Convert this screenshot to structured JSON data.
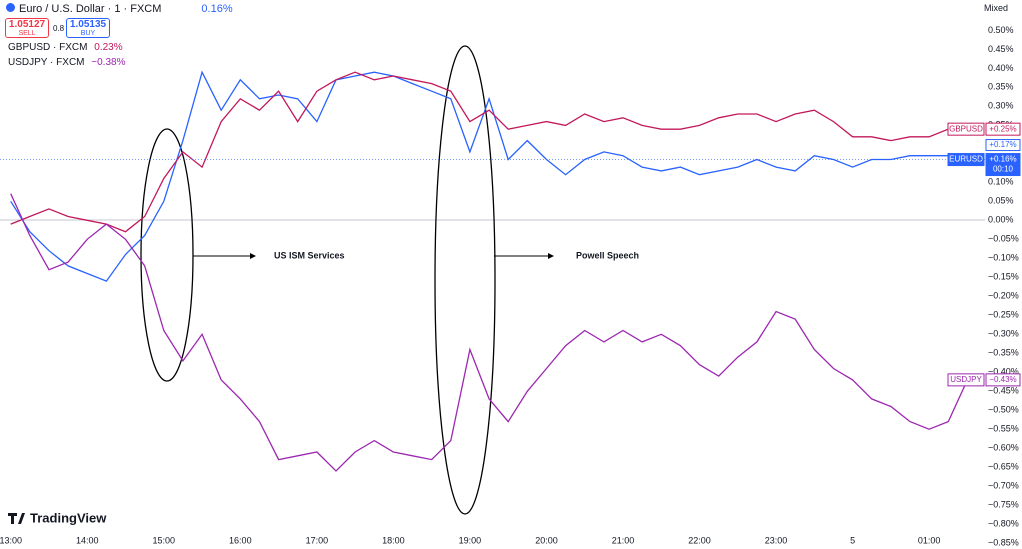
{
  "header": {
    "title": "Euro / U.S. Dollar · 1 · FXCM",
    "change": "0.16%",
    "sell_price": "1.05127",
    "sell": "SELL",
    "spread": "0.8",
    "buy_price": "1.05135",
    "buy": "BUY",
    "compare": [
      {
        "symbol": "GBPUSD · FXCM",
        "change": "0.23%"
      },
      {
        "symbol": "USDJPY · FXCM",
        "change": "−0.38%"
      }
    ],
    "scale_mode": "Mixed",
    "brand": "TradingView"
  },
  "chart_data": {
    "type": "line",
    "annotations": [
      "US ISM Services",
      "Powell Speech"
    ],
    "x": [
      0,
      0.25,
      0.5,
      0.75,
      1,
      1.25,
      1.5,
      1.75,
      2,
      2.25,
      2.5,
      2.75,
      3,
      3.25,
      3.5,
      3.75,
      4,
      4.25,
      4.5,
      4.75,
      5,
      5.25,
      5.5,
      5.75,
      6,
      6.25,
      6.5,
      6.75,
      7,
      7.25,
      7.5,
      7.75,
      8,
      8.25,
      8.5,
      8.75,
      9,
      9.25,
      9.5,
      9.75,
      10,
      10.25,
      10.5,
      10.75,
      11,
      11.25,
      11.5,
      11.75,
      12,
      12.25,
      12.5
    ],
    "xlim": [
      -0.14,
      12.73
    ],
    "xticks": [
      {
        "value": 0,
        "label": "13:00"
      },
      {
        "value": 1,
        "label": "14:00"
      },
      {
        "value": 2,
        "label": "15:00"
      },
      {
        "value": 3,
        "label": "16:00"
      },
      {
        "value": 4,
        "label": "17:00"
      },
      {
        "value": 5,
        "label": "18:00"
      },
      {
        "value": 6,
        "label": "19:00"
      },
      {
        "value": 7,
        "label": "20:00"
      },
      {
        "value": 8,
        "label": "21:00"
      },
      {
        "value": 9,
        "label": "22:00"
      },
      {
        "value": 10,
        "label": "23:00"
      },
      {
        "value": 11,
        "label": "5"
      },
      {
        "value": 12,
        "label": "01:00"
      }
    ],
    "ylim": [
      -0.86,
      0.53
    ],
    "yticks": [
      {
        "value": 0.5,
        "label": "0.50%"
      },
      {
        "value": 0.45,
        "label": "0.45%"
      },
      {
        "value": 0.4,
        "label": "0.40%"
      },
      {
        "value": 0.35,
        "label": "0.35%"
      },
      {
        "value": 0.3,
        "label": "0.30%"
      },
      {
        "value": 0.25,
        "label": "0.25%"
      },
      {
        "value": 0.2,
        "label": "0.20%"
      },
      {
        "value": 0.15,
        "label": "0.15%"
      },
      {
        "value": 0.1,
        "label": "0.10%"
      },
      {
        "value": 0.05,
        "label": "0.05%"
      },
      {
        "value": 0,
        "label": "0.00%"
      },
      {
        "value": -0.05,
        "label": "−0.05%"
      },
      {
        "value": -0.1,
        "label": "−0.10%"
      },
      {
        "value": -0.15,
        "label": "−0.15%"
      },
      {
        "value": -0.2,
        "label": "−0.20%"
      },
      {
        "value": -0.25,
        "label": "−0.25%"
      },
      {
        "value": -0.3,
        "label": "−0.30%"
      },
      {
        "value": -0.35,
        "label": "−0.35%"
      },
      {
        "value": -0.4,
        "label": "−0.40%"
      },
      {
        "value": -0.45,
        "label": "−0.45%"
      },
      {
        "value": -0.5,
        "label": "−0.50%"
      },
      {
        "value": -0.55,
        "label": "−0.55%"
      },
      {
        "value": -0.6,
        "label": "−0.60%"
      },
      {
        "value": -0.65,
        "label": "−0.65%"
      },
      {
        "value": -0.7,
        "label": "−0.70%"
      },
      {
        "value": -0.75,
        "label": "−0.75%"
      },
      {
        "value": -0.8,
        "label": "−0.80%"
      },
      {
        "value": -0.85,
        "label": "−0.85%"
      }
    ],
    "grid": false,
    "series": [
      {
        "name": "EURUSD",
        "color": "#2962ff",
        "tag": "+0.16%",
        "tag2": "+0.17%",
        "time_left": "00:10",
        "values": [
          0.05,
          -0.03,
          -0.08,
          -0.12,
          -0.14,
          -0.16,
          -0.09,
          -0.04,
          0.05,
          0.21,
          0.39,
          0.29,
          0.37,
          0.32,
          0.33,
          0.32,
          0.26,
          0.37,
          0.38,
          0.39,
          0.38,
          0.36,
          0.34,
          0.32,
          0.18,
          0.32,
          0.16,
          0.21,
          0.16,
          0.12,
          0.16,
          0.18,
          0.17,
          0.14,
          0.13,
          0.14,
          0.12,
          0.13,
          0.14,
          0.16,
          0.14,
          0.13,
          0.17,
          0.16,
          0.14,
          0.16,
          0.16,
          0.17,
          0.17,
          0.17,
          0.16
        ]
      },
      {
        "name": "GBPUSD",
        "color": "#c2185b",
        "tag": "+0.25%",
        "values": [
          -0.01,
          0.01,
          0.03,
          0.01,
          0,
          -0.01,
          -0.03,
          0.01,
          0.11,
          0.18,
          0.14,
          0.26,
          0.32,
          0.29,
          0.34,
          0.26,
          0.34,
          0.37,
          0.39,
          0.37,
          0.38,
          0.37,
          0.36,
          0.34,
          0.26,
          0.29,
          0.24,
          0.25,
          0.26,
          0.25,
          0.28,
          0.26,
          0.27,
          0.25,
          0.24,
          0.24,
          0.25,
          0.27,
          0.28,
          0.28,
          0.26,
          0.28,
          0.29,
          0.26,
          0.22,
          0.22,
          0.21,
          0.22,
          0.22,
          0.24,
          0.24
        ]
      },
      {
        "name": "USDJPY",
        "color": "#9c27b0",
        "tag": "−0.43%",
        "values": [
          0.07,
          -0.04,
          -0.13,
          -0.11,
          -0.05,
          -0.01,
          -0.05,
          -0.12,
          -0.29,
          -0.37,
          -0.3,
          -0.42,
          -0.47,
          -0.53,
          -0.63,
          -0.62,
          -0.61,
          -0.66,
          -0.61,
          -0.58,
          -0.61,
          -0.62,
          -0.63,
          -0.58,
          -0.34,
          -0.47,
          -0.53,
          -0.45,
          -0.39,
          -0.33,
          -0.29,
          -0.32,
          -0.29,
          -0.32,
          -0.3,
          -0.33,
          -0.38,
          -0.41,
          -0.36,
          -0.32,
          -0.24,
          -0.26,
          -0.34,
          -0.39,
          -0.42,
          -0.47,
          -0.49,
          -0.53,
          -0.55,
          -0.53,
          -0.42
        ]
      }
    ]
  }
}
